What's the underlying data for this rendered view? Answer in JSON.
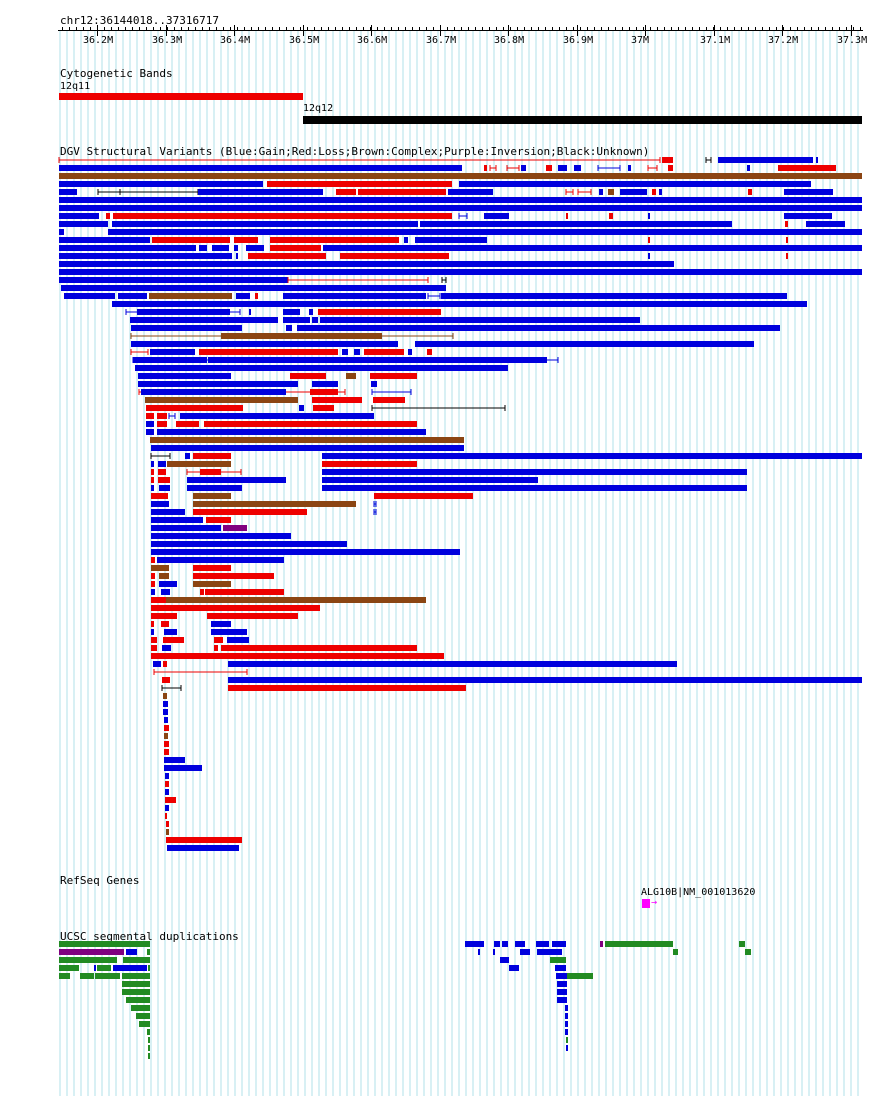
{
  "position_label": "chr12:36144018..37316717",
  "ruler": {
    "ticks": [
      {
        "label": "36.2M",
        "value": 36.2
      },
      {
        "label": "36.3M",
        "value": 36.3
      },
      {
        "label": "36.4M",
        "value": 36.4
      },
      {
        "label": "36.5M",
        "value": 36.5
      },
      {
        "label": "36.6M",
        "value": 36.6
      },
      {
        "label": "36.7M",
        "value": 36.7
      },
      {
        "label": "36.8M",
        "value": 36.8
      },
      {
        "label": "36.9M",
        "value": 36.9
      },
      {
        "label": "37M",
        "value": 37.0
      },
      {
        "label": "37.1M",
        "value": 37.1
      },
      {
        "label": "37.2M",
        "value": 37.2
      },
      {
        "label": "37.3M",
        "value": 37.3
      }
    ]
  },
  "tracks": {
    "cyto": {
      "title": "Cytogenetic Bands",
      "bands": [
        {
          "name": "12q11",
          "start": 36.144,
          "end": 36.5,
          "color": "#ee0000"
        },
        {
          "name": "12q12",
          "start": 36.5,
          "end": 37.317,
          "color": "#000000"
        }
      ]
    },
    "dgv": {
      "title": "DGV Structural Variants (Blue:Gain;Red:Loss;Brown:Complex;Purple:Inversion;Black:Unknown)"
    },
    "refseq": {
      "title": "RefSeq Genes",
      "gene_label": "ALG10B|NM_001013620",
      "gene_color": "#ff00ff"
    },
    "segdup": {
      "title": "UCSC segmental duplications"
    }
  },
  "colors": {
    "gain": "#0000dd",
    "loss": "#ee0000",
    "complex": "#8b4513",
    "inversion": "#800080",
    "unknown": "#000000",
    "grid": "#b0e0ea",
    "segdup_green": "#228b22",
    "segdup_blue": "#0000dd",
    "segdup_purple": "#800080"
  }
}
